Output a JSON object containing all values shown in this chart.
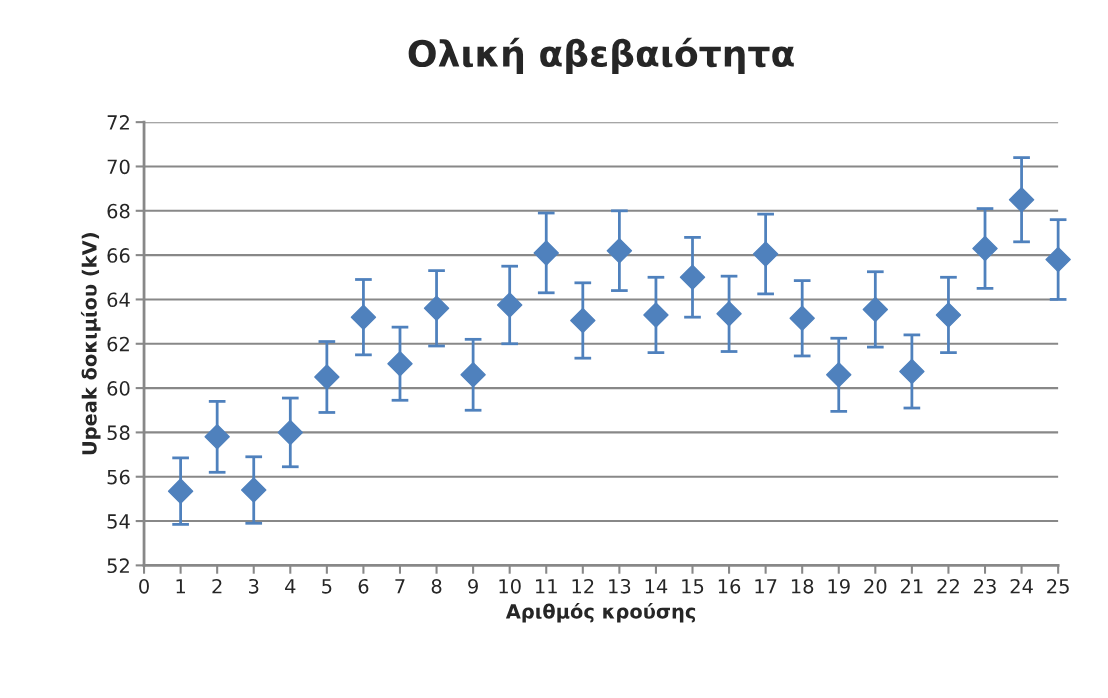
{
  "chart_data": {
    "type": "scatter",
    "title": "Ολική αβεβαιότητα",
    "xlabel": "Αριθμός κρούσης",
    "ylabel": "Upeak δοκιμίου (kV)",
    "x": [
      1,
      2,
      3,
      4,
      5,
      6,
      7,
      8,
      9,
      10,
      11,
      12,
      13,
      14,
      15,
      16,
      17,
      18,
      19,
      20,
      21,
      22,
      23,
      24,
      25
    ],
    "series": [
      {
        "color": "#4f81bd",
        "values": [
          55.35,
          57.8,
          55.4,
          58.0,
          60.5,
          63.2,
          61.1,
          63.6,
          60.6,
          63.75,
          66.1,
          63.05,
          66.2,
          63.3,
          65.0,
          63.35,
          66.05,
          63.15,
          60.6,
          63.55,
          60.75,
          63.3,
          66.3,
          68.5,
          65.8
        ],
        "errors": [
          1.5,
          1.6,
          1.5,
          1.55,
          1.6,
          1.7,
          1.65,
          1.7,
          1.6,
          1.75,
          1.8,
          1.7,
          1.8,
          1.7,
          1.8,
          1.7,
          1.8,
          1.7,
          1.65,
          1.7,
          1.65,
          1.7,
          1.8,
          1.9,
          1.8
        ]
      }
    ],
    "xlim": [
      0,
      25
    ],
    "xticks": [
      0,
      1,
      2,
      3,
      4,
      5,
      6,
      7,
      8,
      9,
      10,
      11,
      12,
      13,
      14,
      15,
      16,
      17,
      18,
      19,
      20,
      21,
      22,
      23,
      24,
      25
    ],
    "ylim": [
      52,
      72
    ],
    "yticks": [
      52,
      54,
      56,
      58,
      60,
      62,
      64,
      66,
      68,
      70,
      72
    ],
    "grid": "y",
    "marker": "diamond"
  }
}
